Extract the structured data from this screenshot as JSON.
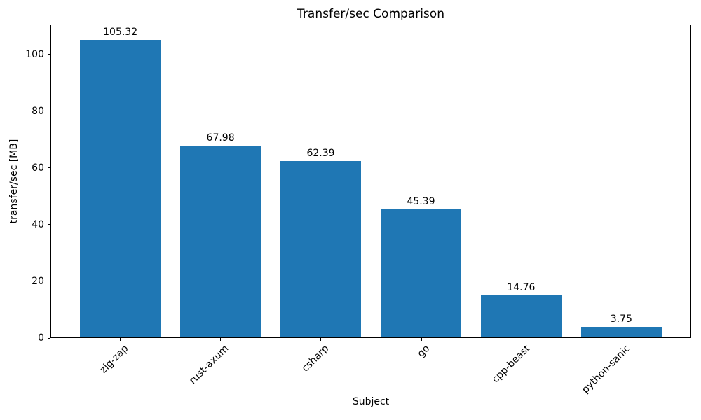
{
  "figure": {
    "background_color": "#ffffff",
    "spine_color": "#000000",
    "text_color": "#000000"
  },
  "chart_data": {
    "type": "bar",
    "title": "Transfer/sec Comparison",
    "xlabel": "Subject",
    "ylabel": "transfer/sec [MB]",
    "categories": [
      "zig-zap",
      "rust-axum",
      "csharp",
      "go",
      "cpp-beast",
      "python-sanic"
    ],
    "values": [
      105.32,
      67.98,
      62.39,
      45.39,
      14.76,
      3.75
    ],
    "value_labels": [
      "105.32",
      "67.98",
      "62.39",
      "45.39",
      "14.76",
      "3.75"
    ],
    "bar_color": "#1f77b4",
    "ylim": [
      0,
      110.6
    ],
    "yticks": [
      0,
      20,
      40,
      60,
      80,
      100
    ],
    "ytick_labels": [
      "0",
      "20",
      "40",
      "60",
      "80",
      "100"
    ],
    "bar_width_fraction": 0.8,
    "x_tick_rotation_deg": 45,
    "grid": false,
    "legend": null
  }
}
